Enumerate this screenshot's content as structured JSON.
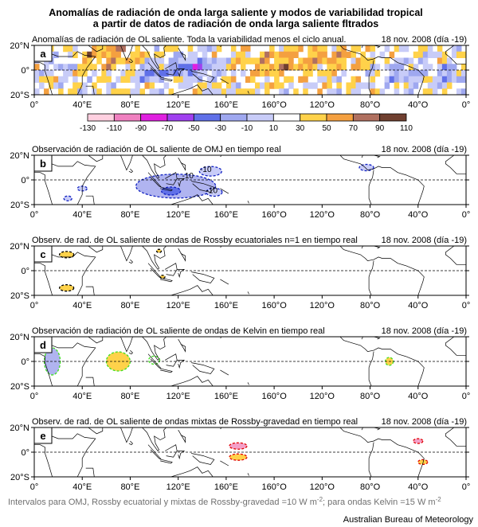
{
  "title_line1": "Anomalías de radiación de onda larga saliente y modos de variabilidad tropical",
  "title_line2": "a partir de datos de radiación de onda larga saliente fltrados",
  "date": "18 nov. 2008 (día -19)",
  "y_ticks": [
    "20°N",
    "0°",
    "20°S"
  ],
  "x_ticks": [
    "0°",
    "40°E",
    "80°E",
    "120°E",
    "160°E",
    "160°O",
    "120°O",
    "80°O",
    "40°O",
    "0°"
  ],
  "colorbar": {
    "ticks": [
      "-130",
      "-110",
      "-90",
      "-70",
      "-50",
      "-30",
      "-10",
      "10",
      "30",
      "50",
      "70",
      "90",
      "110"
    ],
    "colors": [
      "#ffd0e0",
      "#f080c0",
      "#e020e0",
      "#a040f0",
      "#6070e8",
      "#9fa8f0",
      "#c8ccf8",
      "#ffffff",
      "#ffd24a",
      "#f4a040",
      "#b07060",
      "#704030"
    ]
  },
  "footer": {
    "text1": "Intervalos para OMJ, Rossby ecuatorial y mixtas de Rossby-gravedad =10 W m",
    "text2": ";  para ondas Kelvin =15 W m",
    "sup": "-2",
    "credit": "Australian Bureau of Meteorology"
  },
  "chart_data": [
    {
      "panel": "a",
      "type": "heatmap",
      "title": "Anomalías de radiación de OL saliente. Toda la variabilidad menos el ciclo anual."
    },
    {
      "panel": "b",
      "type": "heatmap",
      "title": "Observación de radiación de OL saliente de OMJ en tiempo real",
      "contour_labels": [
        "-10",
        "-10",
        "-10"
      ]
    },
    {
      "panel": "c",
      "type": "heatmap",
      "title": "Observ. de rad. de OL saliente de ondas de Rossby ecuatoriales n=1 en tiempo real"
    },
    {
      "panel": "d",
      "type": "heatmap",
      "title": "Observación de radiación de OL saliente de ondas de Kelvin en tiempo real"
    },
    {
      "panel": "e",
      "type": "heatmap",
      "title": "Observ. de rad. de OL saliente de ondas mixtas de Rossby-gravedad en tiempo real"
    }
  ]
}
